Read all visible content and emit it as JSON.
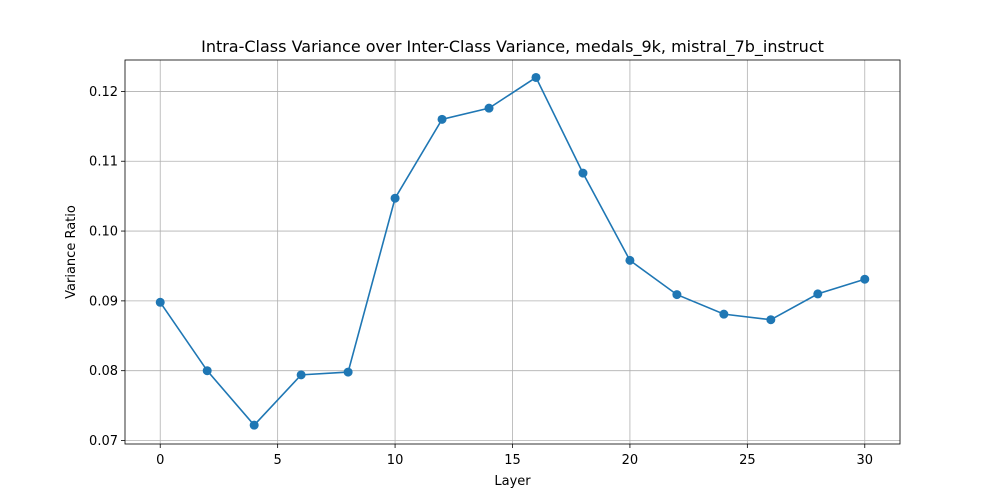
{
  "chart_data": {
    "type": "line",
    "title": "Intra-Class Variance over Inter-Class Variance, medals_9k, mistral_7b_instruct",
    "xlabel": "Layer",
    "ylabel": "Variance Ratio",
    "xlim": [
      -1.5,
      31.5
    ],
    "ylim": [
      0.0695,
      0.1245
    ],
    "x_ticks": [
      0,
      5,
      10,
      15,
      20,
      25,
      30
    ],
    "y_ticks": [
      0.07,
      0.08,
      0.09,
      0.1,
      0.11,
      0.12
    ],
    "x_tick_labels": [
      "0",
      "5",
      "10",
      "15",
      "20",
      "25",
      "30"
    ],
    "y_tick_labels": [
      "0.07",
      "0.08",
      "0.09",
      "0.10",
      "0.11",
      "0.12"
    ],
    "grid": true,
    "line_color": "#1f77b4",
    "series": [
      {
        "x": [
          0,
          2,
          4,
          6,
          8,
          10,
          12,
          14,
          16,
          18,
          20,
          22,
          24,
          26,
          28,
          30
        ],
        "values": [
          0.0898,
          0.08,
          0.0722,
          0.0794,
          0.0798,
          0.1047,
          0.116,
          0.1176,
          0.122,
          0.1083,
          0.0958,
          0.0909,
          0.0881,
          0.0873,
          0.091,
          0.0931
        ]
      }
    ]
  }
}
